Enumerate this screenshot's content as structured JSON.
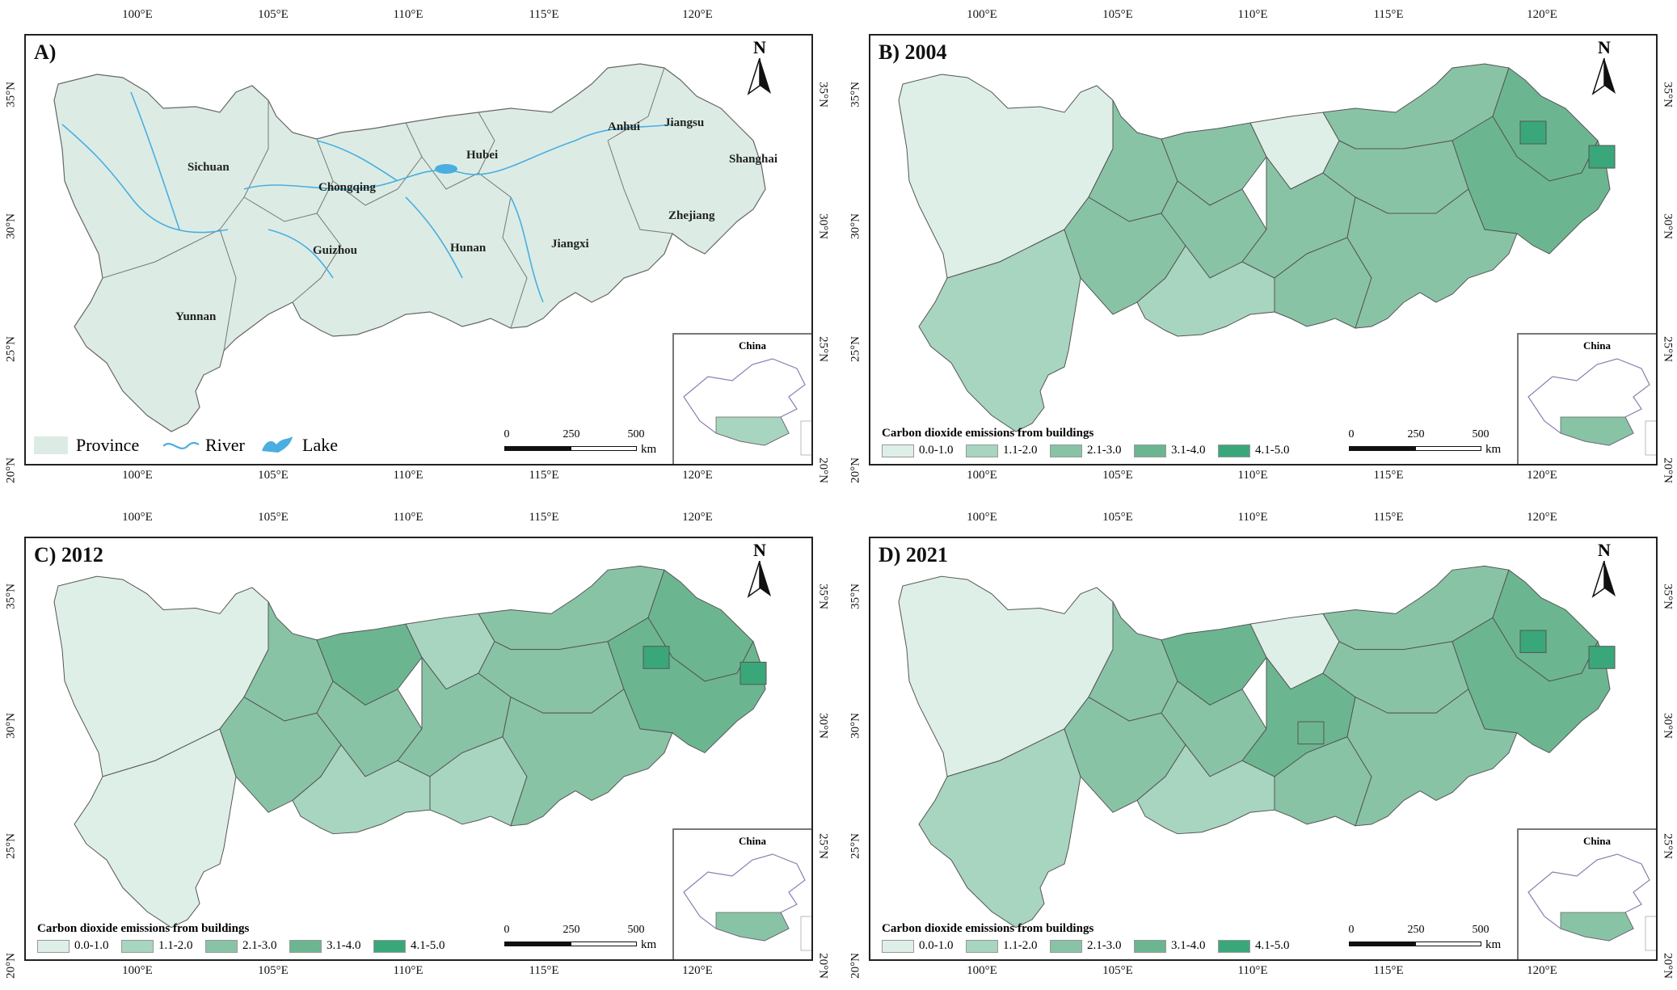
{
  "lon_ticks": [
    "100°E",
    "105°E",
    "110°E",
    "115°E",
    "120°E"
  ],
  "lat_ticks": [
    "35°N",
    "30°N",
    "25°N",
    "20°N"
  ],
  "colors": {
    "province_fill": "#dcece5",
    "river": "#4aaee0",
    "class_1": "#deefe7",
    "class_2": "#a8d5bf",
    "class_3": "#89c3a6",
    "class_4": "#6bb690",
    "class_5": "#3aa77a"
  },
  "panel_a": {
    "title": "A)",
    "provinces": [
      "Sichuan",
      "Chongqing",
      "Hubei",
      "Anhui",
      "Jiangsu",
      "Shanghai",
      "Guizhou",
      "Hunan",
      "Jiangxi",
      "Zhejiang",
      "Yunnan"
    ],
    "legend": {
      "province": "Province",
      "river": "River",
      "lake": "Lake"
    }
  },
  "panel_b": {
    "title": "B) 2004"
  },
  "panel_c": {
    "title": "C) 2012"
  },
  "panel_d": {
    "title": "D) 2021"
  },
  "north_label": "N",
  "inset_label": "China",
  "scale": {
    "v0": "0",
    "v1": "250",
    "v2": "500",
    "unit": "km"
  },
  "emission_legend": {
    "title": "Carbon dioxide emissions from buildings",
    "classes": [
      "0.0-1.0",
      "1.1-2.0",
      "2.1-3.0",
      "3.1-4.0",
      "4.1-5.0"
    ]
  }
}
